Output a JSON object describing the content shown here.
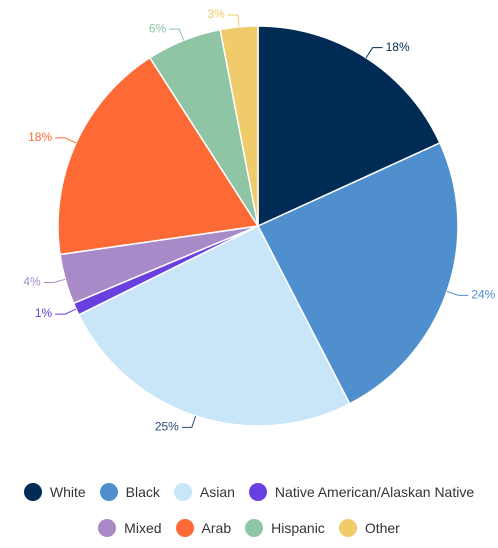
{
  "chart_data": {
    "type": "pie",
    "categories": [
      "White",
      "Black",
      "Asian",
      "Native American/Alaskan Native",
      "Mixed",
      "Arab",
      "Hispanic",
      "Other"
    ],
    "values": [
      18,
      24,
      25,
      1,
      4,
      18,
      6,
      3
    ],
    "value_labels": [
      "18%",
      "24%",
      "25%",
      "1%",
      "4%",
      "18%",
      "6%",
      "3%"
    ],
    "colors": [
      "#002b55",
      "#4f8fcd",
      "#c8e6f8",
      "#6a3fe0",
      "#a88ac8",
      "#fd6a35",
      "#8ec5a5",
      "#f0cb6a"
    ]
  }
}
